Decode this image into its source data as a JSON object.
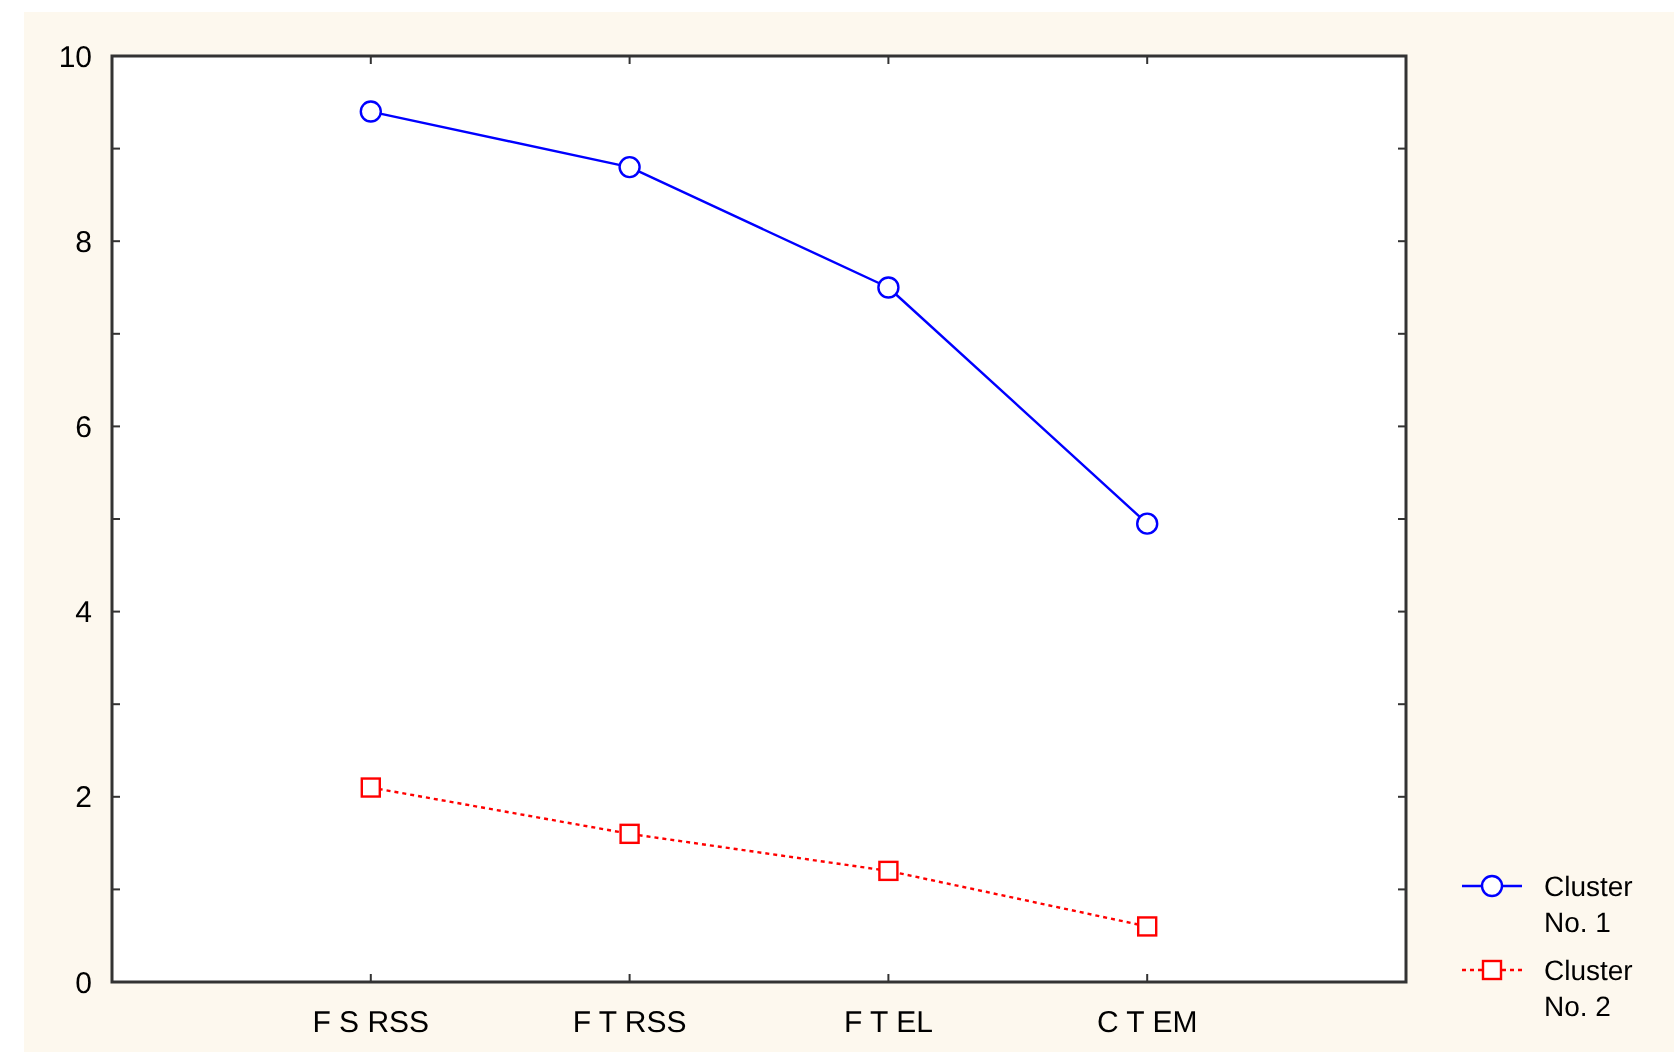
{
  "chart_data": {
    "type": "line",
    "categories": [
      "F S RSS",
      "F T RSS",
      "F T EL",
      "C T EM"
    ],
    "series": [
      {
        "name": "Cluster No. 1",
        "color": "#0000ff",
        "values": [
          9.4,
          8.8,
          7.5,
          4.95
        ],
        "marker": "circle",
        "line_style": "solid"
      },
      {
        "name": "Cluster No. 2",
        "color": "#ff0000",
        "values": [
          2.1,
          1.6,
          1.2,
          0.6
        ],
        "marker": "square",
        "line_style": "dotted"
      }
    ],
    "ylim": [
      0,
      10
    ],
    "yticks": [
      0,
      {
        "value": 1,
        "label": null
      },
      2,
      {
        "value": 3,
        "label": null
      },
      4,
      {
        "value": 5,
        "label": null
      },
      6,
      {
        "value": 7,
        "label": null
      },
      8,
      {
        "value": 9,
        "label": null
      },
      10
    ],
    "grid": false,
    "legend": "bottom right"
  }
}
